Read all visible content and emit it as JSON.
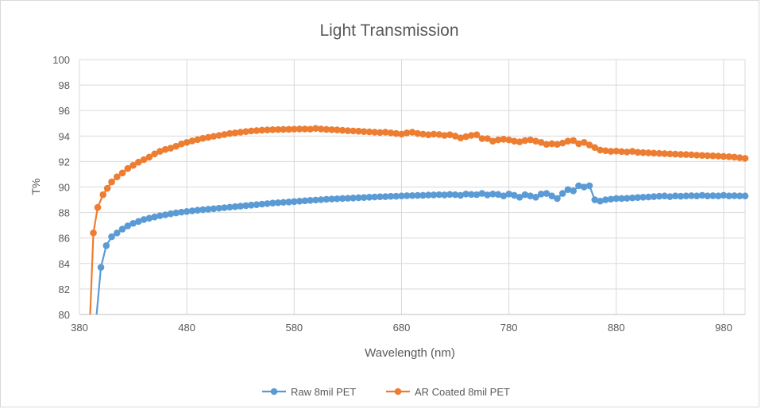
{
  "chart_data": {
    "type": "line",
    "title": "Light Transmission",
    "xlabel": "Wavelength (nm)",
    "ylabel": "T%",
    "xlim": [
      380,
      1000
    ],
    "ylim": [
      80,
      100
    ],
    "x_ticks": [
      380,
      480,
      580,
      680,
      780,
      880,
      980
    ],
    "y_ticks": [
      80,
      82,
      84,
      86,
      88,
      90,
      92,
      94,
      96,
      98,
      100
    ],
    "grid": true,
    "legend_position": "bottom",
    "series": [
      {
        "name": "Raw 8mil PET",
        "color": "#5B9BD5",
        "x": [
          396,
          400,
          405,
          410,
          415,
          420,
          425,
          430,
          435,
          440,
          445,
          450,
          455,
          460,
          465,
          470,
          475,
          480,
          485,
          490,
          495,
          500,
          505,
          510,
          515,
          520,
          525,
          530,
          535,
          540,
          545,
          550,
          555,
          560,
          565,
          570,
          575,
          580,
          585,
          590,
          595,
          600,
          605,
          610,
          615,
          620,
          625,
          630,
          635,
          640,
          645,
          650,
          655,
          660,
          665,
          670,
          675,
          680,
          685,
          690,
          695,
          700,
          705,
          710,
          715,
          720,
          725,
          730,
          735,
          740,
          745,
          750,
          755,
          760,
          765,
          770,
          775,
          780,
          785,
          790,
          795,
          800,
          805,
          810,
          815,
          820,
          825,
          830,
          835,
          840,
          845,
          850,
          855,
          860,
          865,
          870,
          875,
          880,
          885,
          890,
          895,
          900,
          905,
          910,
          915,
          920,
          925,
          930,
          935,
          940,
          945,
          950,
          955,
          960,
          965,
          970,
          975,
          980,
          985,
          990,
          995,
          1000
        ],
        "values": [
          80.0,
          83.7,
          85.4,
          86.1,
          86.4,
          86.7,
          86.95,
          87.15,
          87.3,
          87.45,
          87.55,
          87.65,
          87.75,
          87.82,
          87.9,
          87.97,
          88.03,
          88.08,
          88.13,
          88.18,
          88.22,
          88.26,
          88.3,
          88.34,
          88.38,
          88.42,
          88.46,
          88.5,
          88.54,
          88.58,
          88.62,
          88.66,
          88.7,
          88.74,
          88.77,
          88.8,
          88.83,
          88.86,
          88.89,
          88.92,
          88.95,
          88.98,
          89.01,
          89.04,
          89.06,
          89.08,
          89.1,
          89.12,
          89.14,
          89.16,
          89.18,
          89.2,
          89.22,
          89.24,
          89.25,
          89.27,
          89.28,
          89.3,
          89.32,
          89.33,
          89.34,
          89.35,
          89.37,
          89.38,
          89.4,
          89.38,
          89.42,
          89.4,
          89.35,
          89.45,
          89.42,
          89.4,
          89.5,
          89.38,
          89.45,
          89.42,
          89.3,
          89.45,
          89.35,
          89.2,
          89.4,
          89.3,
          89.2,
          89.45,
          89.5,
          89.3,
          89.1,
          89.5,
          89.8,
          89.7,
          90.1,
          90.0,
          90.1,
          89.0,
          88.9,
          89.0,
          89.05,
          89.1,
          89.1,
          89.12,
          89.15,
          89.18,
          89.2,
          89.22,
          89.25,
          89.28,
          89.3,
          89.25,
          89.3,
          89.28,
          89.3,
          89.32,
          89.3,
          89.35,
          89.3,
          89.32,
          89.3,
          89.35,
          89.3,
          89.32,
          89.3,
          89.3
        ]
      },
      {
        "name": "AR Coated 8mil PET",
        "color": "#ED7D31",
        "x": [
          390,
          393,
          397,
          402,
          406,
          410,
          415,
          420,
          425,
          430,
          435,
          440,
          445,
          450,
          455,
          460,
          465,
          470,
          475,
          480,
          485,
          490,
          495,
          500,
          505,
          510,
          515,
          520,
          525,
          530,
          535,
          540,
          545,
          550,
          555,
          560,
          565,
          570,
          575,
          580,
          585,
          590,
          595,
          600,
          605,
          610,
          615,
          620,
          625,
          630,
          635,
          640,
          645,
          650,
          655,
          660,
          665,
          670,
          675,
          680,
          685,
          690,
          695,
          700,
          705,
          710,
          715,
          720,
          725,
          730,
          735,
          740,
          745,
          750,
          755,
          760,
          765,
          770,
          775,
          780,
          785,
          790,
          795,
          800,
          805,
          810,
          815,
          820,
          825,
          830,
          835,
          840,
          845,
          850,
          855,
          860,
          865,
          870,
          875,
          880,
          885,
          890,
          895,
          900,
          905,
          910,
          915,
          920,
          925,
          930,
          935,
          940,
          945,
          950,
          955,
          960,
          965,
          970,
          975,
          980,
          985,
          990,
          995,
          1000
        ],
        "values": [
          80.0,
          86.4,
          88.4,
          89.4,
          89.9,
          90.4,
          90.8,
          91.1,
          91.45,
          91.7,
          91.95,
          92.15,
          92.35,
          92.6,
          92.8,
          92.95,
          93.05,
          93.2,
          93.38,
          93.5,
          93.62,
          93.72,
          93.82,
          93.9,
          93.98,
          94.05,
          94.12,
          94.2,
          94.25,
          94.3,
          94.35,
          94.4,
          94.43,
          94.46,
          94.48,
          94.5,
          94.51,
          94.52,
          94.53,
          94.54,
          94.55,
          94.55,
          94.54,
          94.6,
          94.55,
          94.52,
          94.5,
          94.48,
          94.45,
          94.42,
          94.4,
          94.38,
          94.35,
          94.33,
          94.3,
          94.28,
          94.3,
          94.25,
          94.2,
          94.15,
          94.25,
          94.3,
          94.2,
          94.15,
          94.1,
          94.15,
          94.12,
          94.05,
          94.1,
          94.0,
          93.85,
          93.95,
          94.05,
          94.1,
          93.8,
          93.8,
          93.6,
          93.7,
          93.75,
          93.7,
          93.6,
          93.55,
          93.65,
          93.7,
          93.6,
          93.5,
          93.35,
          93.4,
          93.35,
          93.45,
          93.6,
          93.65,
          93.4,
          93.5,
          93.3,
          93.1,
          92.9,
          92.85,
          92.8,
          92.82,
          92.78,
          92.75,
          92.8,
          92.72,
          92.7,
          92.68,
          92.66,
          92.64,
          92.62,
          92.6,
          92.58,
          92.56,
          92.55,
          92.53,
          92.5,
          92.48,
          92.46,
          92.45,
          92.43,
          92.4,
          92.38,
          92.35,
          92.3,
          92.25
        ]
      }
    ]
  }
}
